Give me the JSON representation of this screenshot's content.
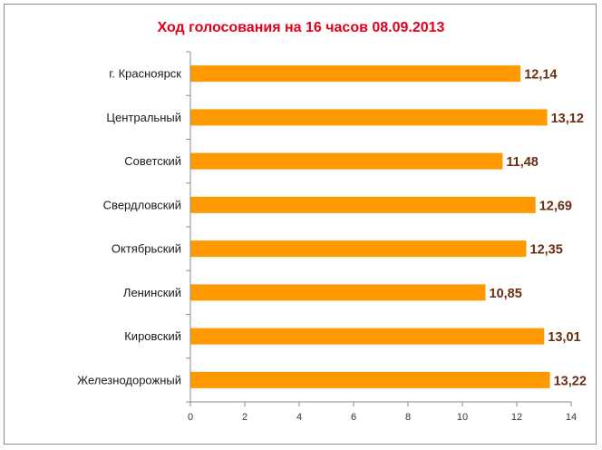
{
  "chart_data": {
    "type": "bar",
    "orientation": "horizontal",
    "title": "Ход голосования на 16 часов 08.09.2013",
    "categories": [
      "г. Красноярск",
      "Центральный",
      "Советский",
      "Свердловский",
      "Октябрьский",
      "Ленинский",
      "Кировский",
      "Железнодорожный"
    ],
    "values": [
      12.14,
      13.12,
      11.48,
      12.69,
      12.35,
      10.85,
      13.01,
      13.22
    ],
    "value_labels": [
      "12,14",
      "13,12",
      "11,48",
      "12,69",
      "12,35",
      "10,85",
      "13,01",
      "13,22"
    ],
    "xlim": [
      0,
      14
    ],
    "x_ticks": [
      0,
      2,
      4,
      6,
      8,
      10,
      12,
      14
    ],
    "grid": false,
    "legend": "none",
    "colors": {
      "bar": "#ff9900",
      "title": "#e2001a",
      "value_label": "#6b2d0f",
      "axis": "#8c8c8c"
    }
  }
}
